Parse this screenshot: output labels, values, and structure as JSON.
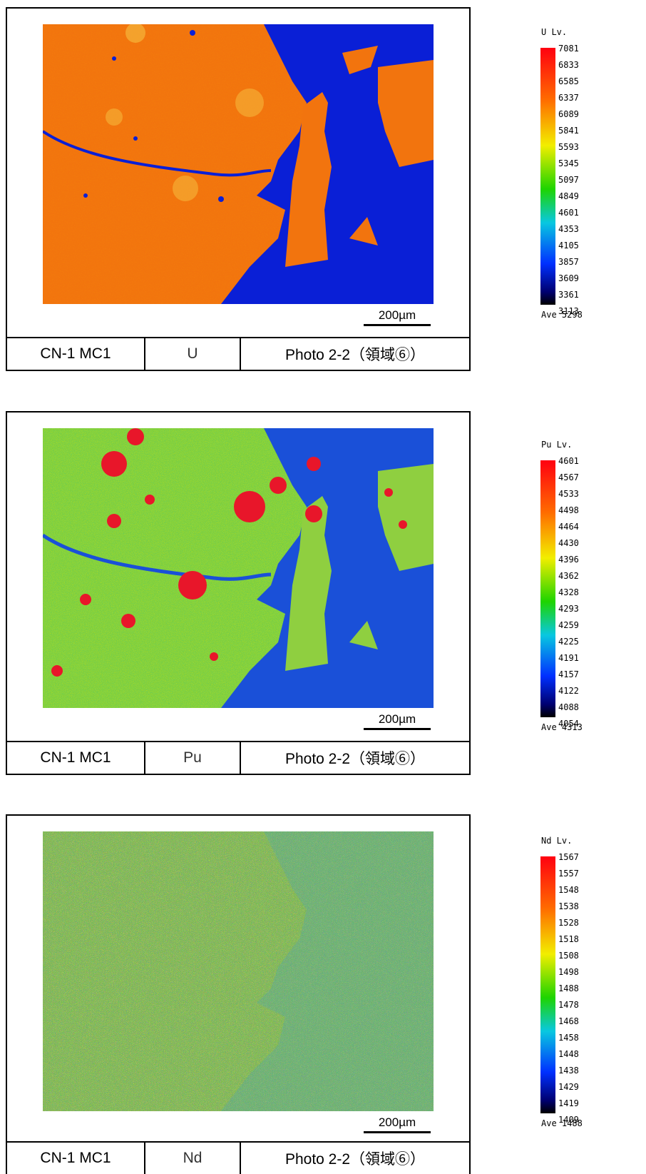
{
  "scale_bar_label": "200µm",
  "panels": [
    {
      "element": "U",
      "sample_label": "CN-1 MC1",
      "photo_label": "Photo 2-2（領域⑥）",
      "legend_title": "U Lv.",
      "legend_values": [
        "7081",
        "6833",
        "6585",
        "6337",
        "6089",
        "5841",
        "5593",
        "5345",
        "5097",
        "4849",
        "4601",
        "4353",
        "4105",
        "3857",
        "3609",
        "3361",
        "3113"
      ],
      "legend_average": "Ave 5298"
    },
    {
      "element": "Pu",
      "sample_label": "CN-1 MC1",
      "photo_label": "Photo 2-2（領域⑥）",
      "legend_title": "Pu Lv.",
      "legend_values": [
        "4601",
        "4567",
        "4533",
        "4498",
        "4464",
        "4430",
        "4396",
        "4362",
        "4328",
        "4293",
        "4259",
        "4225",
        "4191",
        "4157",
        "4122",
        "4088",
        "4054"
      ],
      "legend_average": "Ave 4313"
    },
    {
      "element": "Nd",
      "sample_label": "CN-1 MC1",
      "photo_label": "Photo 2-2（領域⑥）",
      "legend_title": "Nd Lv.",
      "legend_values": [
        "1567",
        "1557",
        "1548",
        "1538",
        "1528",
        "1518",
        "1508",
        "1498",
        "1488",
        "1478",
        "1468",
        "1458",
        "1448",
        "1438",
        "1429",
        "1419",
        "1409"
      ],
      "legend_average": "Ave 1488"
    }
  ]
}
